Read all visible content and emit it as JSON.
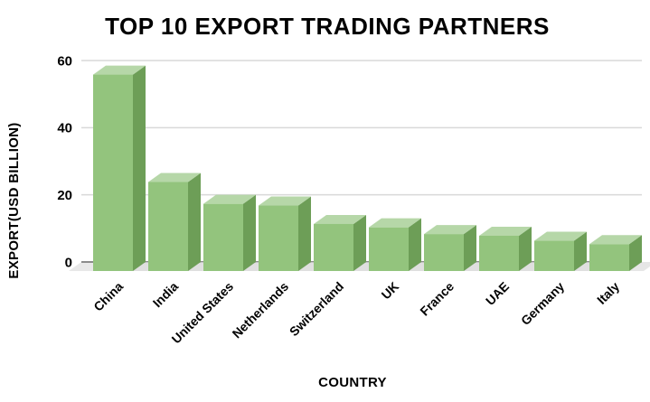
{
  "chart_data": {
    "type": "bar",
    "style": "3d-column",
    "title": "TOP 10 EXPORT TRADING PARTNERS",
    "xlabel": "COUNTRY",
    "ylabel": "EXPORT(USD BILLION)",
    "categories": [
      "China",
      "India",
      "United States",
      "Netherlands",
      "Switzerland",
      "UK",
      "France",
      "UAE",
      "Germany",
      "Italy"
    ],
    "values": [
      58.5,
      26.5,
      20,
      19.5,
      14,
      13,
      11,
      10.5,
      9,
      8
    ],
    "ylim": [
      0,
      60
    ],
    "yticks": [
      0,
      20,
      40,
      60
    ],
    "grid": true,
    "legend": false,
    "colors": {
      "bar_front": "#93c47d",
      "bar_top": "#b6d7a8",
      "bar_side": "#6d9e57",
      "bar_shadow": "#dcdcdc",
      "floor": "#e8e8e8",
      "gridline": "#d9d9d9",
      "axis_line": "#8c8c8c",
      "text": "#000000",
      "background": "#ffffff"
    }
  }
}
